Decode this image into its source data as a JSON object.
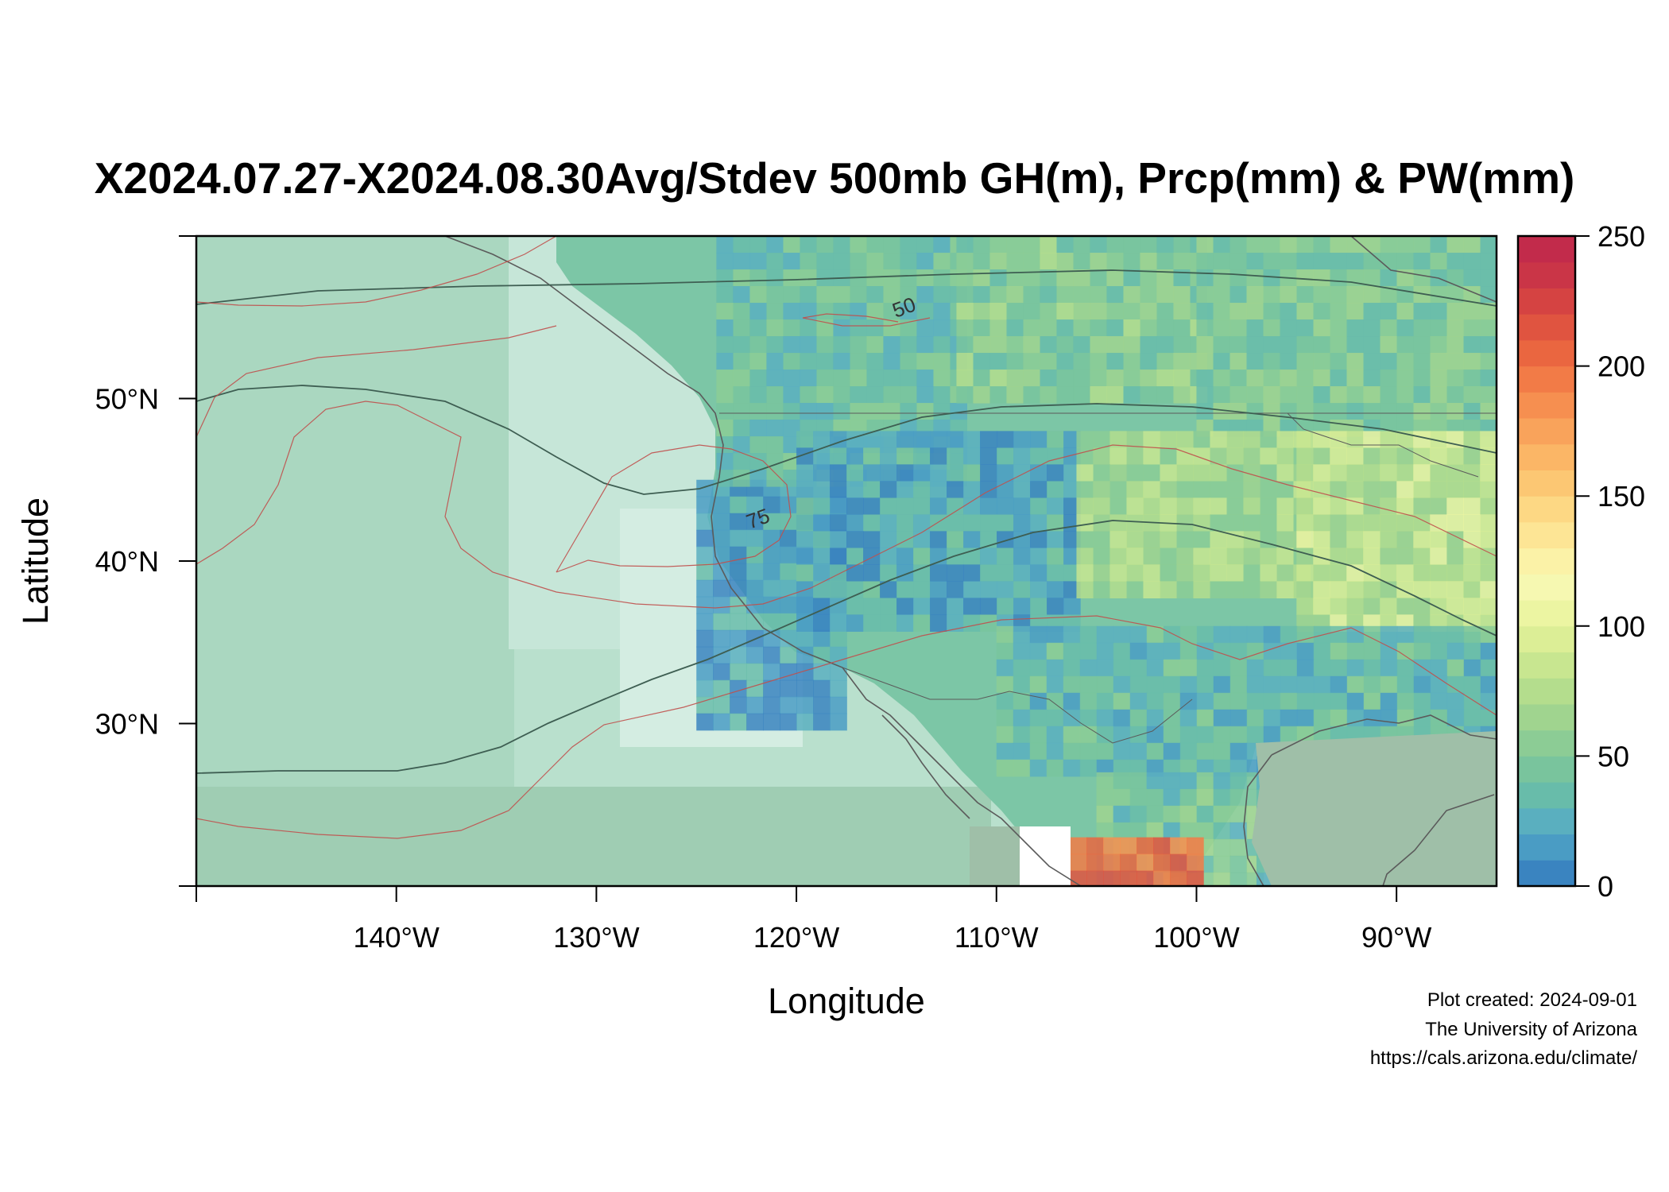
{
  "title": "X2024.07.27-X2024.08.30Avg/Stdev 500mb GH(m), Prcp(mm) & PW(mm)",
  "axes": {
    "xlabel": "Longitude",
    "ylabel": "Latitude",
    "x_ticks": [
      {
        "value": -140,
        "label": "140°W"
      },
      {
        "value": -130,
        "label": "130°W"
      },
      {
        "value": -120,
        "label": "120°W"
      },
      {
        "value": -110,
        "label": "110°W"
      },
      {
        "value": -100,
        "label": "100°W"
      },
      {
        "value": -90,
        "label": "90°W"
      }
    ],
    "y_ticks": [
      {
        "value": 30,
        "label": "30°N"
      },
      {
        "value": 40,
        "label": "40°N"
      },
      {
        "value": 50,
        "label": "50°N"
      }
    ],
    "xlim": [
      -150,
      -85
    ],
    "ylim": [
      20,
      60
    ]
  },
  "colorbar": {
    "min": 0,
    "max": 250,
    "tick_labels": [
      "0",
      "50",
      "100",
      "150",
      "200",
      "250"
    ],
    "colors": [
      "#3a84c0",
      "#4a9cc4",
      "#5aafbf",
      "#68bcaa",
      "#79c49d",
      "#8ccc95",
      "#a0d48f",
      "#b4dd8d",
      "#c8e690",
      "#dcee96",
      "#ecf5a2",
      "#f6f8b1",
      "#fbf2a7",
      "#fde595",
      "#fdd884",
      "#fcc773",
      "#fbb666",
      "#f9a35b",
      "#f68f50",
      "#f27b47",
      "#ea6640",
      "#e05440",
      "#d54342",
      "#ca3547",
      "#c22b4b"
    ]
  },
  "chart_data": {
    "type": "heatmap",
    "title": "X2024.07.27-X2024.08.30Avg/Stdev 500mb GH(m), Prcp(mm) & PW(mm)",
    "xlabel": "Longitude",
    "ylabel": "Latitude",
    "xlim": [
      -150,
      -85
    ],
    "ylim": [
      20,
      60
    ],
    "value_range": [
      0,
      250
    ],
    "field_regions": [
      {
        "lon": [
          -150,
          -135
        ],
        "lat": [
          20,
          60
        ],
        "value": 40
      },
      {
        "lon": [
          -135,
          -125
        ],
        "lat": [
          20,
          60
        ],
        "value": 30
      },
      {
        "lon": [
          -125,
          -118
        ],
        "lat": [
          30,
          45
        ],
        "value": 20
      },
      {
        "lon": [
          -124,
          -112
        ],
        "lat": [
          45,
          60
        ],
        "value": 40
      },
      {
        "lon": [
          -112,
          -100
        ],
        "lat": [
          50,
          60
        ],
        "value": 55
      },
      {
        "lon": [
          -100,
          -85
        ],
        "lat": [
          48,
          60
        ],
        "value": 50
      },
      {
        "lon": [
          -120,
          -106
        ],
        "lat": [
          36,
          48
        ],
        "value": 22
      },
      {
        "lon": [
          -106,
          -95
        ],
        "lat": [
          38,
          48
        ],
        "value": 70
      },
      {
        "lon": [
          -95,
          -85
        ],
        "lat": [
          36,
          48
        ],
        "value": 85
      },
      {
        "lon": [
          -110,
          -85
        ],
        "lat": [
          27,
          36
        ],
        "value": 35
      },
      {
        "lon": [
          -105,
          -97
        ],
        "lat": [
          20,
          27
        ],
        "value": 45
      },
      {
        "lon": [
          -97,
          -85
        ],
        "lat": [
          20,
          28
        ],
        "value": 25
      },
      {
        "lon": [
          -108,
          -100
        ],
        "lat": [
          20,
          23
        ],
        "value": 200
      }
    ],
    "contour_labels": [
      {
        "label": "50",
        "lon": -114.5,
        "lat": 55.2
      },
      {
        "label": "75",
        "lon": -121.8,
        "lat": 42.2
      }
    ],
    "contours": {
      "gh_mean": "dark grey lines",
      "stdev": "red lines"
    }
  },
  "credits": {
    "line1": "Plot created: 2024-09-01",
    "line2": "The University of Arizona",
    "line3": "https://cals.arizona.edu/climate/"
  }
}
